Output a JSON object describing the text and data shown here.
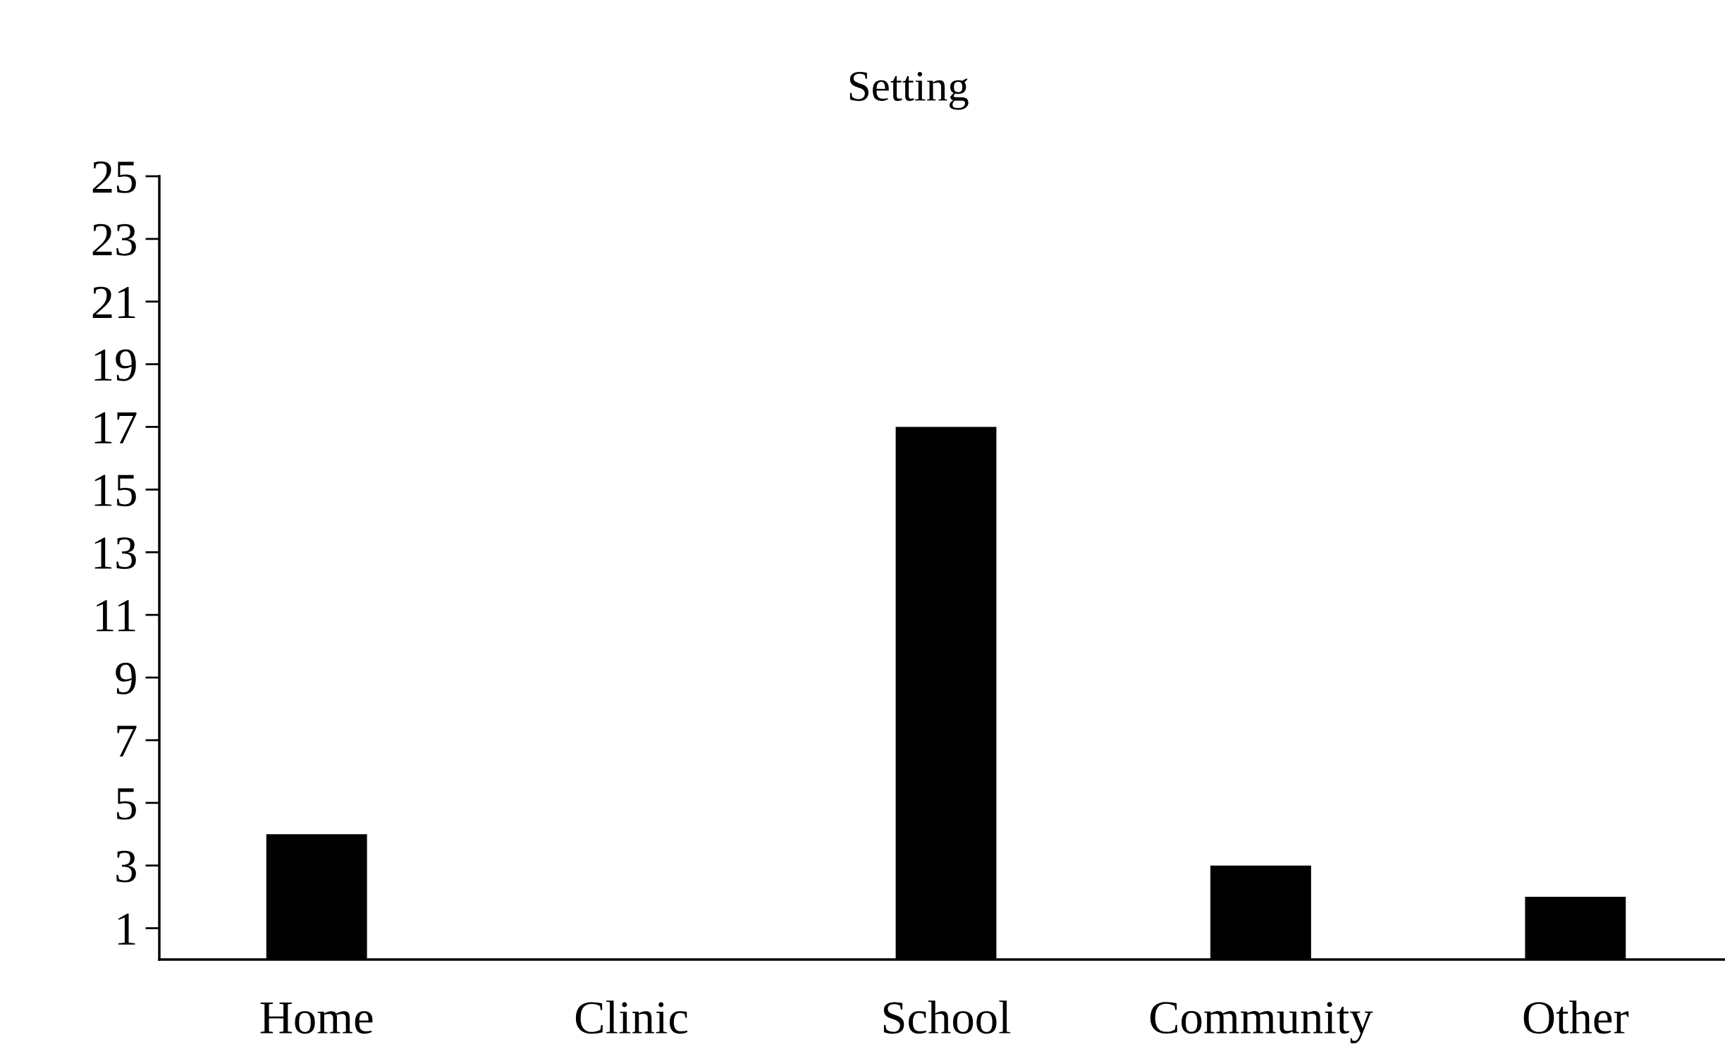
{
  "chart_data": {
    "type": "bar",
    "title": "Setting",
    "categories": [
      "Home",
      "Clinic",
      "School",
      "Community",
      "Other"
    ],
    "values": [
      4,
      0,
      17,
      3,
      2
    ],
    "color": "#000000",
    "ylim": [
      0,
      25
    ],
    "yticks": [
      1,
      3,
      5,
      7,
      9,
      11,
      13,
      15,
      17,
      19,
      21,
      23,
      25
    ],
    "grid": false
  }
}
